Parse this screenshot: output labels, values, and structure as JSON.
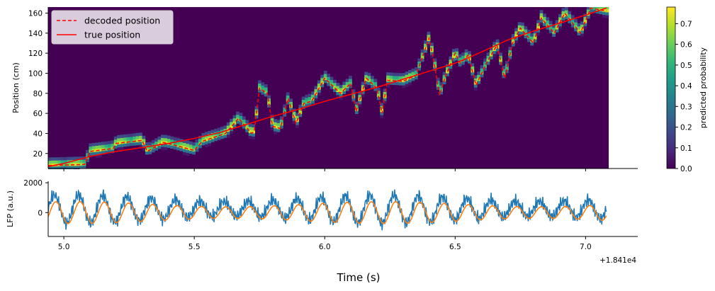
{
  "chart_data": [
    {
      "type": "heatmap",
      "panel": "decoding",
      "ylabel": "Position (cm)",
      "ylim": [
        5,
        166
      ],
      "yticks": [
        20,
        40,
        60,
        80,
        100,
        120,
        140,
        160
      ],
      "xlim": [
        4.94,
        7.2
      ],
      "x_offset_label": "+1.841e4",
      "colorbar": {
        "label": "predicted probability",
        "range": [
          0.0,
          0.78
        ],
        "ticks": [
          "0.0",
          "0.1",
          "0.2",
          "0.3",
          "0.4",
          "0.5",
          "0.6",
          "0.7"
        ],
        "colormap": [
          "#440154",
          "#482878",
          "#3e4989",
          "#31688e",
          "#26828e",
          "#1f9e89",
          "#35b779",
          "#6ece58",
          "#b5de2b",
          "#fde725"
        ]
      },
      "legend": {
        "placement": "top-left",
        "entries": [
          {
            "label": "decoded position",
            "style": "dashed",
            "color": "#ff0000"
          },
          {
            "label": "true position",
            "style": "solid",
            "color": "#ff0000"
          }
        ]
      },
      "series": [
        {
          "name": "true position",
          "color": "#ff0000",
          "x": [
            4.94,
            5.0,
            5.1,
            5.2,
            5.3,
            5.4,
            5.5,
            5.6,
            5.7,
            5.8,
            5.9,
            6.0,
            6.1,
            6.2,
            6.3,
            6.4,
            6.5,
            6.6,
            6.7,
            6.8,
            6.9,
            7.0,
            7.08
          ],
          "y": [
            7,
            10,
            17,
            22,
            26,
            30,
            35,
            41,
            49,
            57,
            64,
            72,
            79,
            86,
            94,
            102,
            110,
            121,
            133,
            142,
            150,
            158,
            165
          ]
        },
        {
          "name": "decoded position",
          "color": "#ff0000",
          "x": [
            4.94,
            5.08,
            5.1,
            5.19,
            5.2,
            5.3,
            5.32,
            5.38,
            5.4,
            5.5,
            5.53,
            5.62,
            5.67,
            5.72,
            5.73,
            5.75,
            5.78,
            5.8,
            5.83,
            5.86,
            5.89,
            5.92,
            5.95,
            6.0,
            6.06,
            6.1,
            6.12,
            6.16,
            6.2,
            6.22,
            6.24,
            6.3,
            6.35,
            6.4,
            6.42,
            6.44,
            6.46,
            6.5,
            6.52,
            6.55,
            6.58,
            6.62,
            6.66,
            6.69,
            6.72,
            6.75,
            6.8,
            6.83,
            6.88,
            6.92,
            6.98,
            7.02,
            7.08
          ],
          "y": [
            8,
            9,
            22,
            25,
            30,
            33,
            22,
            31,
            30,
            23,
            32,
            40,
            55,
            40,
            42,
            85,
            80,
            47,
            45,
            75,
            50,
            70,
            72,
            95,
            80,
            90,
            62,
            95,
            85,
            60,
            93,
            92,
            98,
            135,
            110,
            78,
            95,
            120,
            110,
            118,
            88,
            110,
            128,
            95,
            130,
            145,
            130,
            155,
            140,
            160,
            140,
            165,
            162
          ]
        }
      ]
    },
    {
      "type": "line",
      "panel": "lfp",
      "xlabel": "Time (s)",
      "ylabel": "LFP (a.u.)",
      "ylim": [
        -1600,
        2100
      ],
      "yticks": [
        0,
        2000
      ],
      "xlim": [
        4.94,
        7.2
      ],
      "xticks": [
        "5.0",
        "5.5",
        "6.0",
        "6.5",
        "7.0"
      ],
      "x_offset_label": "+1.841e4",
      "theta_cycles": 23,
      "series": [
        {
          "name": "raw LFP",
          "color": "#1f77b4",
          "mean": 250,
          "amplitude": 900,
          "noise": 250
        },
        {
          "name": "theta-filtered LFP",
          "color": "#ff7f0e",
          "mean": 0,
          "amplitude": 700
        }
      ]
    }
  ]
}
